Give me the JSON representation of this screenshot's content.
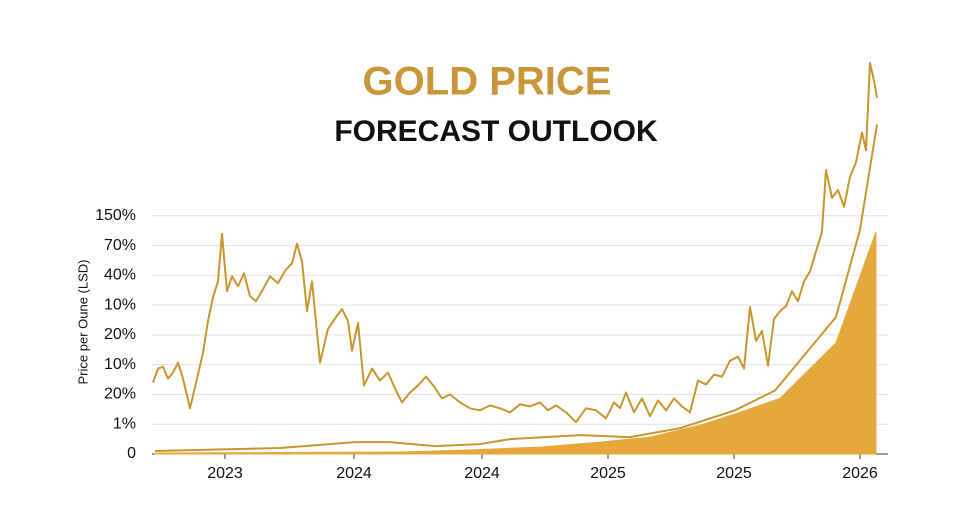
{
  "chart_data": {
    "type": "line",
    "title": "GOLD PRICE",
    "subtitle": "FORECAST OUTLOOK",
    "y_label": "Price per Oune (LSD)",
    "title_color": "#c9973a",
    "grid": true,
    "xlim": [
      0,
      736
    ],
    "xticks": [
      {
        "value": 73,
        "label": "2023"
      },
      {
        "value": 202,
        "label": "2024"
      },
      {
        "value": 330,
        "label": "2024"
      },
      {
        "value": 456,
        "label": "2025"
      },
      {
        "value": 582,
        "label": "2025"
      },
      {
        "value": 708,
        "label": "2026"
      }
    ],
    "ylim": [
      0,
      400
    ],
    "yticks": [
      0,
      {
        "value": 30,
        "label": "1%"
      },
      {
        "value": 60,
        "label": "20%"
      },
      {
        "value": 90,
        "label": "10%"
      },
      {
        "value": 120,
        "label": "20%"
      },
      {
        "value": 150,
        "label": "10%"
      },
      {
        "value": 180,
        "label": "40%"
      },
      {
        "value": 210,
        "label": "70%"
      },
      {
        "value": 240,
        "label": "150%"
      }
    ],
    "series": [
      {
        "style": "area",
        "color": "#e5a83c",
        "x": [
          3,
          248,
          318,
          388,
          448,
          498,
          548,
          588,
          628,
          684,
          724
        ],
        "values": [
          1,
          2,
          4,
          7,
          12,
          17,
          29,
          42,
          56,
          112,
          224
        ]
      },
      {
        "style": "line",
        "color": "#c8962e",
        "x": [
          3,
          128,
          203,
          238,
          283,
          328,
          358,
          428,
          478,
          528,
          583,
          623,
          684,
          708,
          725
        ],
        "values": [
          3,
          6,
          12,
          12,
          8,
          10,
          15,
          19,
          17,
          26,
          44,
          64,
          138,
          226,
          332
        ]
      },
      {
        "style": "line",
        "color": "#c8962e",
        "x": [
          1,
          6,
          11,
          16,
          21,
          26,
          31,
          38,
          45,
          51,
          56,
          61,
          66,
          70,
          75,
          80,
          86,
          92,
          98,
          104,
          111,
          118,
          126,
          134,
          140,
          145,
          150,
          155,
          160,
          168,
          176,
          184,
          190,
          196,
          200,
          206,
          212,
          220,
          228,
          236,
          244,
          250,
          258,
          266,
          274,
          282,
          290,
          298,
          308,
          318,
          328,
          338,
          348,
          358,
          368,
          378,
          388,
          396,
          404,
          414,
          424,
          434,
          444,
          454,
          462,
          468,
          474,
          482,
          490,
          498,
          506,
          514,
          522,
          530,
          538,
          546,
          554,
          562,
          570,
          578,
          586,
          592,
          598,
          604,
          610,
          616,
          622,
          628,
          634,
          640,
          646,
          652,
          658,
          664,
          670,
          674,
          680,
          686,
          692,
          698,
          704,
          710,
          714,
          718,
          722,
          725
        ],
        "values": [
          72,
          86,
          88,
          76,
          82,
          92,
          76,
          46,
          76,
          102,
          134,
          158,
          174,
          222,
          164,
          179,
          169,
          182,
          159,
          154,
          166,
          179,
          172,
          186,
          192,
          212,
          194,
          144,
          174,
          92,
          126,
          138,
          146,
          134,
          104,
          132,
          69,
          86,
          74,
          82,
          64,
          52,
          62,
          69,
          78,
          68,
          56,
          60,
          52,
          46,
          44,
          49,
          46,
          42,
          50,
          48,
          52,
          44,
          49,
          42,
          32,
          46,
          44,
          36,
          52,
          46,
          62,
          42,
          56,
          38,
          54,
          44,
          56,
          48,
          42,
          74,
          70,
          80,
          78,
          94,
          98,
          86,
          148,
          114,
          124,
          89,
          136,
          144,
          149,
          164,
          154,
          174,
          184,
          204,
          224,
          286,
          258,
          266,
          249,
          279,
          294,
          324,
          306,
          394,
          376,
          359
        ]
      }
    ]
  }
}
